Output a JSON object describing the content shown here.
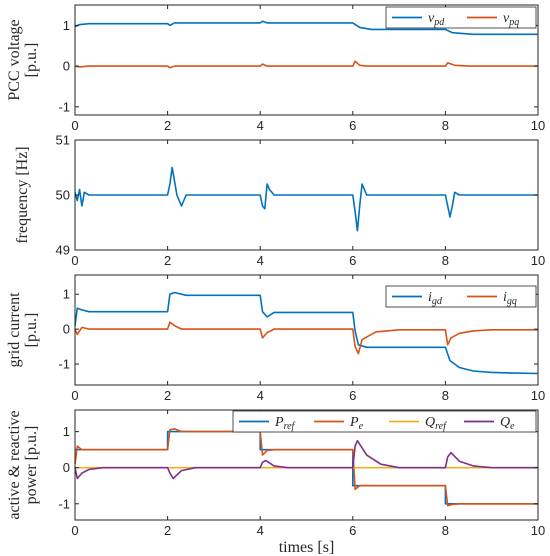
{
  "chart_data": [
    {
      "type": "line",
      "ylabel_lines": [
        "PCC voltage",
        "[p.u.]"
      ],
      "xlim": [
        0,
        10
      ],
      "ylim": [
        -1.2,
        1.5
      ],
      "yticks": [
        -1,
        0,
        1
      ],
      "xticks": [
        0,
        2,
        4,
        6,
        8,
        10
      ],
      "legend": "top-right",
      "series": [
        {
          "name": "v",
          "sub": "pd",
          "color": "#0072BD",
          "x": [
            0,
            0.1,
            0.3,
            2.0,
            2.05,
            2.15,
            4.0,
            4.05,
            4.15,
            6.0,
            6.15,
            6.4,
            7.9,
            8.0,
            8.15,
            8.6,
            10.0
          ],
          "y": [
            0.97,
            1.02,
            1.04,
            1.04,
            1.0,
            1.06,
            1.06,
            1.1,
            1.06,
            1.06,
            0.95,
            0.9,
            0.9,
            0.9,
            0.82,
            0.78,
            0.78
          ]
        },
        {
          "name": "v",
          "sub": "pq",
          "color": "#D95319",
          "x": [
            0,
            0.1,
            0.3,
            2.0,
            2.05,
            2.15,
            4.0,
            4.05,
            4.15,
            6.0,
            6.05,
            6.15,
            6.3,
            8.0,
            8.05,
            8.2,
            8.5,
            10.0
          ],
          "y": [
            0.0,
            -0.02,
            0.0,
            0.0,
            -0.04,
            0.0,
            0.0,
            0.05,
            0.0,
            0.0,
            0.12,
            0.02,
            0.0,
            0.0,
            0.08,
            0.02,
            0.0,
            0.0
          ]
        }
      ]
    },
    {
      "type": "line",
      "ylabel_lines": [
        "frequency [Hz]"
      ],
      "xlim": [
        0,
        10
      ],
      "ylim": [
        49,
        51
      ],
      "yticks": [
        49,
        50,
        51
      ],
      "xticks": [
        0,
        2,
        4,
        6,
        8,
        10
      ],
      "series": [
        {
          "name": "f",
          "color": "#0072BD",
          "x": [
            0,
            0.05,
            0.1,
            0.15,
            0.2,
            0.3,
            0.5,
            2.0,
            2.05,
            2.1,
            2.2,
            2.3,
            2.4,
            2.6,
            4.0,
            4.05,
            4.1,
            4.15,
            4.2,
            4.3,
            4.5,
            6.0,
            6.05,
            6.1,
            6.15,
            6.2,
            6.3,
            6.5,
            8.0,
            8.05,
            8.1,
            8.15,
            8.2,
            8.3,
            8.5,
            10.0
          ],
          "y": [
            50.05,
            49.9,
            50.1,
            49.8,
            50.05,
            50.0,
            50.0,
            50.0,
            50.2,
            50.5,
            50.0,
            49.8,
            50.0,
            50.0,
            50.0,
            49.8,
            49.75,
            50.2,
            50.1,
            50.0,
            50.0,
            50.0,
            49.7,
            49.35,
            49.8,
            50.2,
            50.0,
            50.0,
            50.0,
            49.8,
            49.6,
            49.8,
            50.05,
            50.0,
            50.0,
            50.0
          ]
        }
      ]
    },
    {
      "type": "line",
      "ylabel_lines": [
        "grid current",
        "[p.u.]"
      ],
      "xlim": [
        0,
        10
      ],
      "ylim": [
        -1.6,
        1.55
      ],
      "yticks": [
        -1,
        0,
        1
      ],
      "xticks": [
        0,
        2,
        4,
        6,
        8,
        10
      ],
      "legend": "top-right",
      "series": [
        {
          "name": "i",
          "sub": "gd",
          "color": "#0072BD",
          "x": [
            0,
            0.05,
            0.15,
            0.3,
            2.0,
            2.05,
            2.15,
            2.4,
            4.0,
            4.05,
            4.15,
            4.3,
            6.0,
            6.05,
            6.12,
            6.3,
            7.98,
            8.0,
            8.1,
            8.3,
            8.6,
            9.0,
            9.5,
            10.0
          ],
          "y": [
            0.1,
            0.6,
            0.55,
            0.5,
            0.5,
            1.0,
            1.05,
            0.97,
            0.97,
            0.5,
            0.35,
            0.48,
            0.48,
            -0.05,
            -0.45,
            -0.52,
            -0.52,
            -0.52,
            -0.9,
            -1.1,
            -1.2,
            -1.24,
            -1.26,
            -1.27
          ]
        },
        {
          "name": "i",
          "sub": "gq",
          "color": "#D95319",
          "x": [
            0,
            0.05,
            0.15,
            0.3,
            2.0,
            2.05,
            2.15,
            2.3,
            4.0,
            4.05,
            4.15,
            4.3,
            6.0,
            6.05,
            6.12,
            6.2,
            6.5,
            7.0,
            8.0,
            8.05,
            8.12,
            8.3,
            8.6,
            9.0,
            10.0
          ],
          "y": [
            0.0,
            -0.15,
            0.05,
            0.0,
            0.0,
            0.2,
            0.1,
            0.0,
            0.0,
            -0.25,
            -0.1,
            0.0,
            0.0,
            -0.5,
            -0.7,
            -0.3,
            -0.08,
            -0.02,
            -0.02,
            -0.45,
            -0.25,
            -0.12,
            -0.05,
            -0.02,
            -0.02
          ]
        }
      ]
    },
    {
      "type": "line",
      "ylabel_lines": [
        "active & reactive",
        "power [p.u.]"
      ],
      "xlabel": "times [s]",
      "xlim": [
        0,
        10
      ],
      "ylim": [
        -1.45,
        1.6
      ],
      "yticks": [
        -1,
        0,
        1
      ],
      "xticks": [
        0,
        2,
        4,
        6,
        8,
        10
      ],
      "legend": "top-right",
      "series": [
        {
          "name": "P",
          "sub": "ref",
          "color": "#0072BD",
          "x": [
            0,
            2.0,
            2.0,
            4.0,
            4.0,
            6.0,
            6.0,
            8.0,
            8.0,
            10.0
          ],
          "y": [
            0.5,
            0.5,
            1.0,
            1.0,
            0.5,
            0.5,
            -0.5,
            -0.5,
            -1.0,
            -1.0
          ]
        },
        {
          "name": "P",
          "sub": "e",
          "color": "#D95319",
          "x": [
            0,
            0.05,
            0.15,
            0.3,
            2.0,
            2.05,
            2.15,
            2.3,
            4.0,
            4.05,
            4.15,
            4.3,
            6.0,
            6.05,
            6.15,
            6.3,
            8.0,
            8.05,
            8.15,
            8.3,
            10.0
          ],
          "y": [
            0.1,
            0.6,
            0.5,
            0.5,
            0.5,
            1.05,
            1.08,
            1.0,
            1.0,
            0.35,
            0.48,
            0.5,
            0.5,
            -0.6,
            -0.5,
            -0.5,
            -0.5,
            -1.05,
            -1.02,
            -1.0,
            -1.0
          ]
        },
        {
          "name": "Q",
          "sub": "ref",
          "color": "#EDB120",
          "x": [
            0,
            10.0
          ],
          "y": [
            0.0,
            0.0
          ]
        },
        {
          "name": "Q",
          "sub": "e",
          "color": "#7E2F8E",
          "x": [
            0,
            0.05,
            0.15,
            0.3,
            0.6,
            2.0,
            2.05,
            2.12,
            2.3,
            2.6,
            4.0,
            4.05,
            4.12,
            4.3,
            4.6,
            6.0,
            6.05,
            6.1,
            6.3,
            6.6,
            7.0,
            8.0,
            8.05,
            8.12,
            8.3,
            8.6,
            9.0,
            10.0
          ],
          "y": [
            0.0,
            -0.3,
            -0.15,
            -0.05,
            0.0,
            0.0,
            -0.15,
            -0.3,
            -0.08,
            0.0,
            0.0,
            0.15,
            0.2,
            0.05,
            0.0,
            0.0,
            0.6,
            0.75,
            0.35,
            0.1,
            0.0,
            0.0,
            0.3,
            0.42,
            0.18,
            0.05,
            0.0,
            0.0
          ]
        }
      ]
    }
  ]
}
